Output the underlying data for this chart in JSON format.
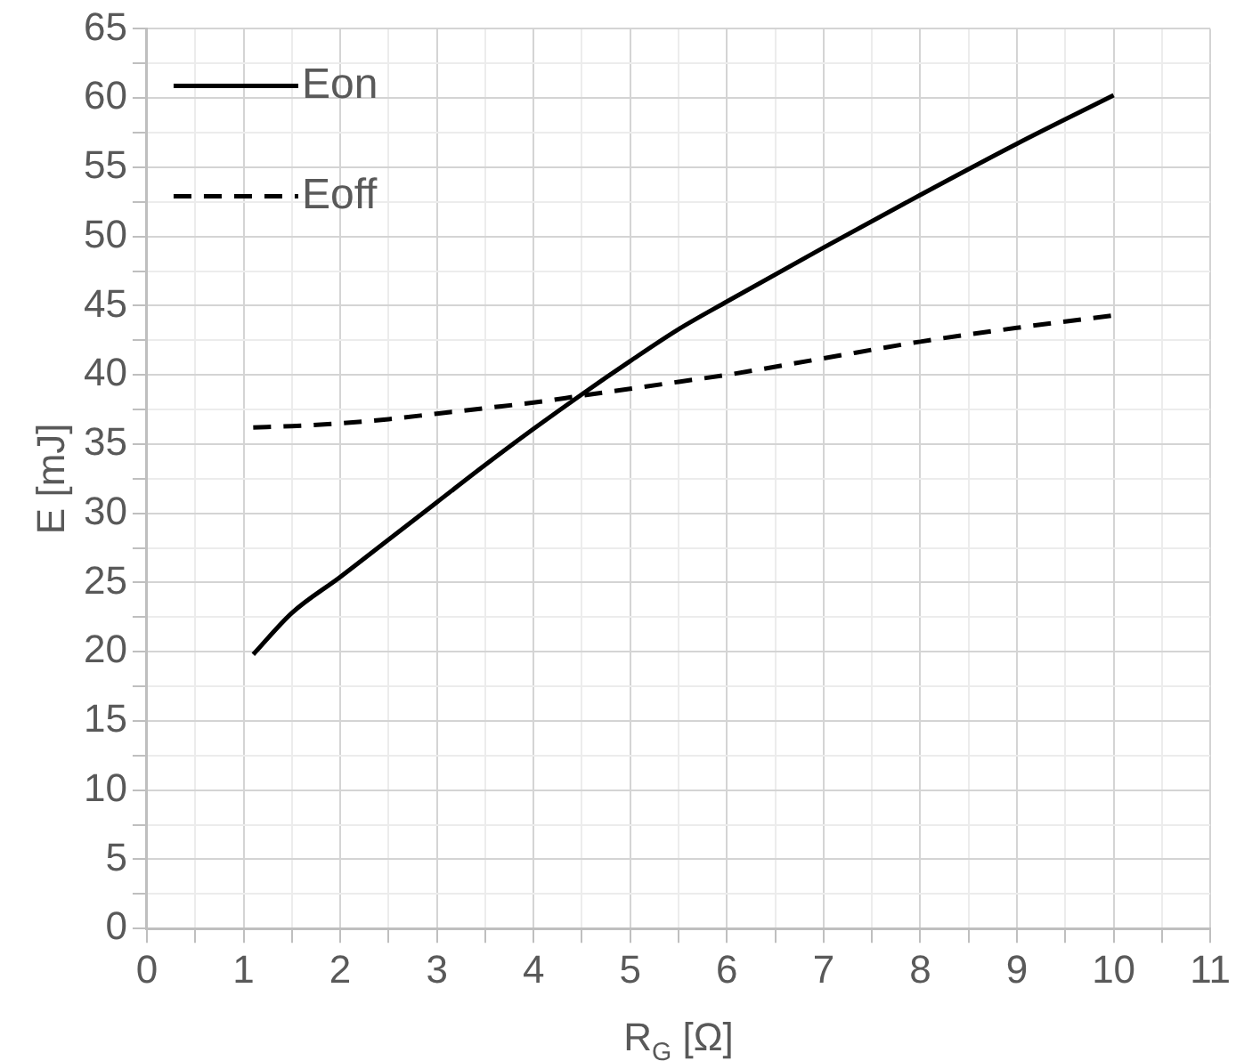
{
  "chart_data": {
    "type": "line",
    "xlabel": "R$_{G}$ [Ω]",
    "ylabel": "E [mJ]",
    "xlim": [
      0,
      11
    ],
    "ylim": [
      0,
      65
    ],
    "xticks": [
      0,
      {
        "value": 0.5,
        "label": null
      },
      1,
      {
        "value": 1.5,
        "label": null
      },
      2,
      {
        "value": 2.5,
        "label": null
      },
      3,
      {
        "value": 3.5,
        "label": null
      },
      4,
      {
        "value": 4.5,
        "label": null
      },
      5,
      {
        "value": 5.5,
        "label": null
      },
      6,
      {
        "value": 6.5,
        "label": null
      },
      7,
      {
        "value": 7.5,
        "label": null
      },
      8,
      {
        "value": 8.5,
        "label": null
      },
      9,
      {
        "value": 9.5,
        "label": null
      },
      10,
      {
        "value": 10.5,
        "label": null
      },
      11
    ],
    "yticks": [
      0,
      {
        "value": 2.5,
        "label": null
      },
      5,
      {
        "value": 7.5,
        "label": null
      },
      10,
      {
        "value": 12.5,
        "label": null
      },
      15,
      {
        "value": 17.5,
        "label": null
      },
      20,
      {
        "value": 22.5,
        "label": null
      },
      25,
      {
        "value": 27.5,
        "label": null
      },
      30,
      {
        "value": 32.5,
        "label": null
      },
      35,
      {
        "value": 37.5,
        "label": null
      },
      40,
      {
        "value": 42.5,
        "label": null
      },
      45,
      {
        "value": 47.5,
        "label": null
      },
      50,
      {
        "value": 52.5,
        "label": null
      },
      55,
      {
        "value": 57.5,
        "label": null
      },
      60,
      {
        "value": 62.5,
        "label": null
      },
      65
    ],
    "grid": true,
    "legend": "top left",
    "marker": "none",
    "x": [
      1.1,
      1.5,
      2,
      2.5,
      3,
      3.5,
      4,
      4.5,
      5,
      5.5,
      6,
      7,
      8,
      9,
      10
    ],
    "series": [
      {
        "name": "Eon",
        "color": "#000000",
        "line_style": "solid",
        "values": [
          19.8,
          22.8,
          25.4,
          28.1,
          30.8,
          33.5,
          36.1,
          38.6,
          41.0,
          43.3,
          45.3,
          49.2,
          53.0,
          56.7,
          60.2
        ]
      },
      {
        "name": "Eoff",
        "color": "#000000",
        "line_style": "dashed",
        "values": [
          36.2,
          36.3,
          36.5,
          36.8,
          37.2,
          37.6,
          38.0,
          38.5,
          39.0,
          39.5,
          40.0,
          41.2,
          42.4,
          43.4,
          44.3
        ]
      }
    ]
  }
}
